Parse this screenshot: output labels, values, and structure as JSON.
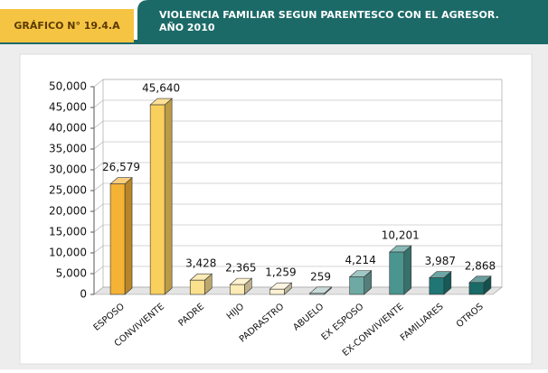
{
  "chart_data": {
    "type": "bar3d",
    "label": "GRÁFICO N° 19.4.A",
    "title": [
      "VIOLENCIA FAMILIAR SEGUN PARENTESCO CON EL AGRESOR.",
      "AÑO 2010"
    ],
    "categories": [
      "ESPOSO",
      "CONVIVIENTE",
      "PADRE",
      "HIJO",
      "PADRASTRO",
      "ABUELO",
      "EX ESPOSO",
      "EX-CONVIVIENTE",
      "FAMILIARES",
      "OTROS"
    ],
    "values": [
      26579,
      45640,
      3428,
      2365,
      1259,
      259,
      4214,
      10201,
      3987,
      2868
    ],
    "value_labels": [
      "26,579",
      "45,640",
      "3,428",
      "2,365",
      "1,259",
      "259",
      "4,214",
      "10,201",
      "3,987",
      "2,868"
    ],
    "colors": [
      "#f5b335",
      "#f9cf5e",
      "#fbe08e",
      "#fdebb5",
      "#fdf1d2",
      "#a9c6c2",
      "#6ea9a4",
      "#4a9590",
      "#1f7674",
      "#1a6a67"
    ],
    "ylim": [
      0,
      50000
    ],
    "yticks": [
      0,
      {
        "value": 5000,
        "label": "5,000"
      },
      {
        "value": 10000,
        "label": "10,000"
      },
      {
        "value": 15000,
        "label": "15,000"
      },
      {
        "value": 20000,
        "label": "20,000"
      },
      {
        "value": 25000,
        "label": "25,000"
      },
      {
        "value": 30000,
        "label": "30,000"
      },
      {
        "value": 35000,
        "label": "35,000"
      },
      {
        "value": 40000,
        "label": "40,000"
      },
      {
        "value": 45000,
        "label": "45,000"
      },
      {
        "value": 50000,
        "label": "50,000"
      }
    ],
    "grid": true
  }
}
